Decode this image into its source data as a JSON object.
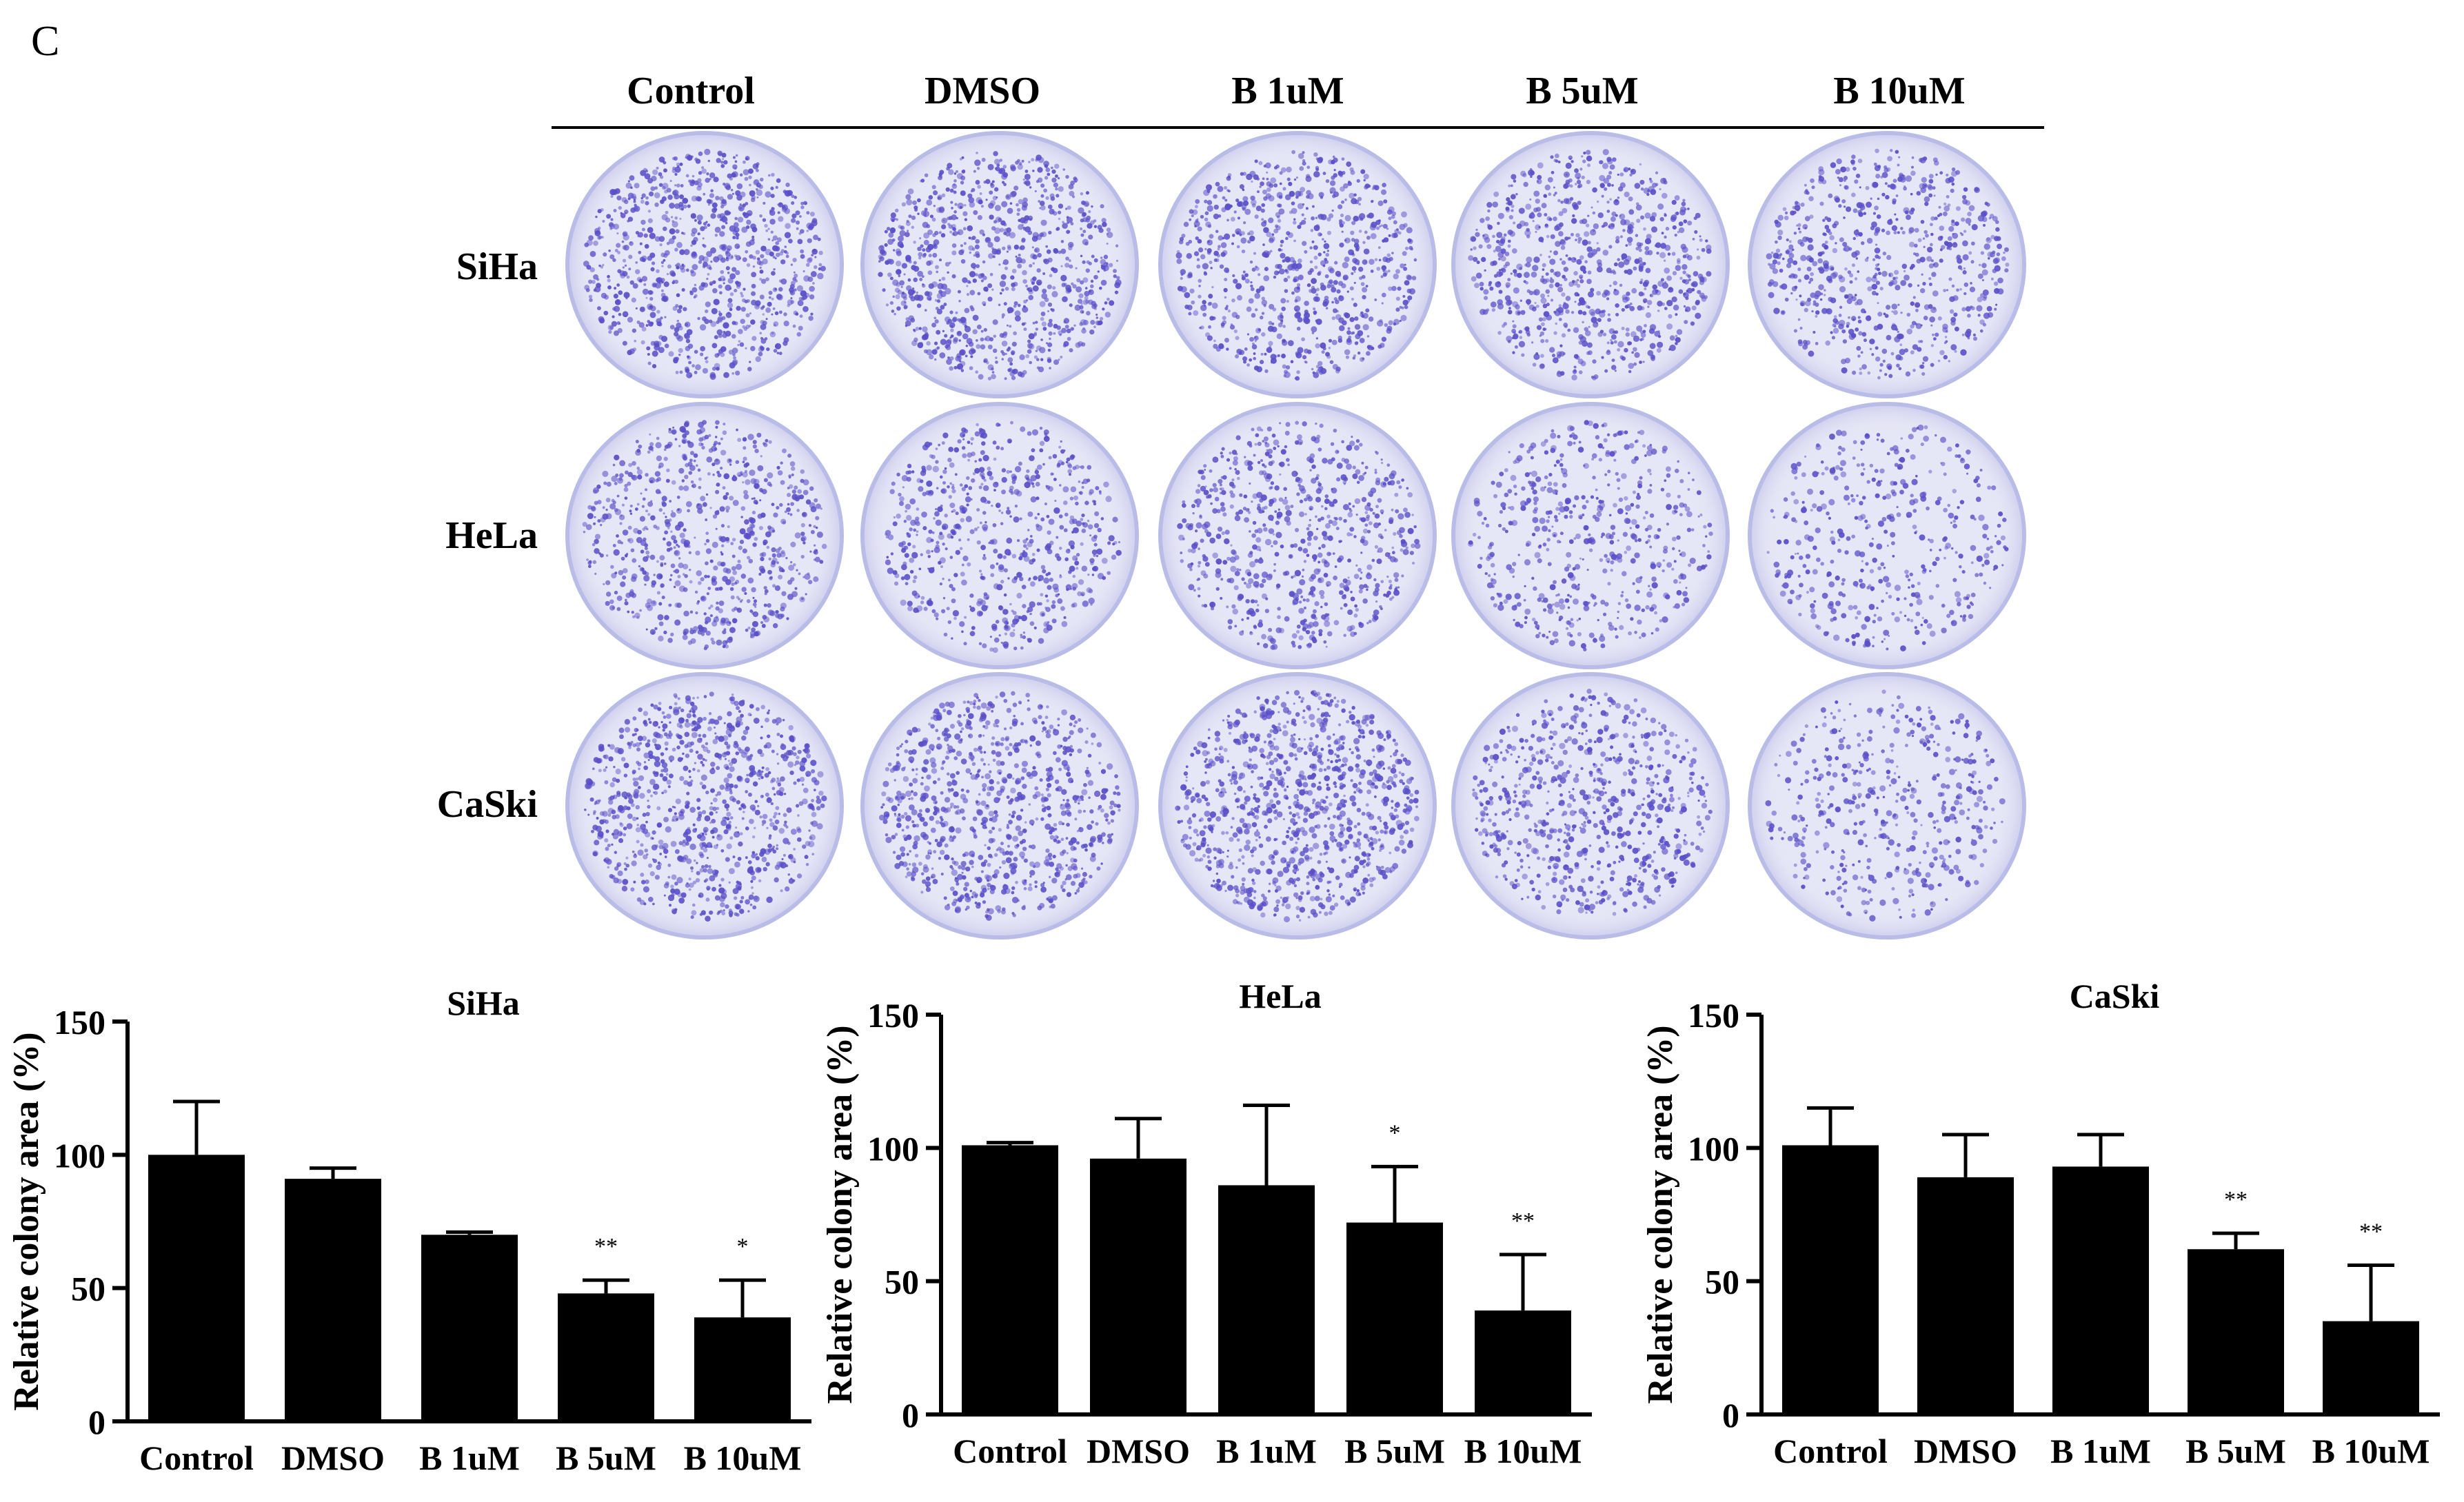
{
  "panel_label": "C",
  "image_grid": {
    "column_headers": [
      "Control",
      "DMSO",
      "B 1uM",
      "B 5uM",
      "B 10uM"
    ],
    "row_labels": [
      "SiHa",
      "HeLa",
      "CaSki"
    ],
    "colors": {
      "plate_bg": "#e6e7f6",
      "colony": "#5a4fc8",
      "plate_rim": "#b9bce6"
    }
  },
  "chart_data": [
    {
      "type": "bar",
      "title": "SiHa",
      "ylabel": "Relative colony area (%)",
      "xlabel": "",
      "categories": [
        "Control",
        "DMSO",
        "B 1uM",
        "B 5uM",
        "B 10uM"
      ],
      "values": [
        100,
        91,
        70,
        48,
        39
      ],
      "errors": [
        20,
        4,
        1,
        5,
        14
      ],
      "significance": [
        "",
        "",
        "",
        "**",
        "*"
      ],
      "ylim": [
        0,
        150
      ],
      "yticks": [
        "0",
        "50",
        "100",
        "150"
      ],
      "bar_color": "#000000",
      "grid": false
    },
    {
      "type": "bar",
      "title": "HeLa",
      "ylabel": "Relative colony area (%)",
      "xlabel": "",
      "categories": [
        "Control",
        "DMSO",
        "B 1uM",
        "B 5uM",
        "B 10uM"
      ],
      "values": [
        101,
        96,
        86,
        72,
        39
      ],
      "errors": [
        1,
        15,
        30,
        21,
        21
      ],
      "significance": [
        "",
        "",
        "",
        "*",
        "**"
      ],
      "ylim": [
        0,
        150
      ],
      "yticks": [
        "0",
        "50",
        "100",
        "150"
      ],
      "bar_color": "#000000",
      "grid": false
    },
    {
      "type": "bar",
      "title": "CaSki",
      "ylabel": "Relative colony area (%)",
      "xlabel": "",
      "categories": [
        "Control",
        "DMSO",
        "B 1uM",
        "B 5uM",
        "B 10uM"
      ],
      "values": [
        101,
        89,
        93,
        62,
        35
      ],
      "errors": [
        14,
        16,
        12,
        6,
        21
      ],
      "significance": [
        "",
        "",
        "",
        "**",
        "**"
      ],
      "ylim": [
        0,
        150
      ],
      "yticks": [
        "0",
        "50",
        "100",
        "150"
      ],
      "bar_color": "#000000",
      "grid": false
    }
  ]
}
